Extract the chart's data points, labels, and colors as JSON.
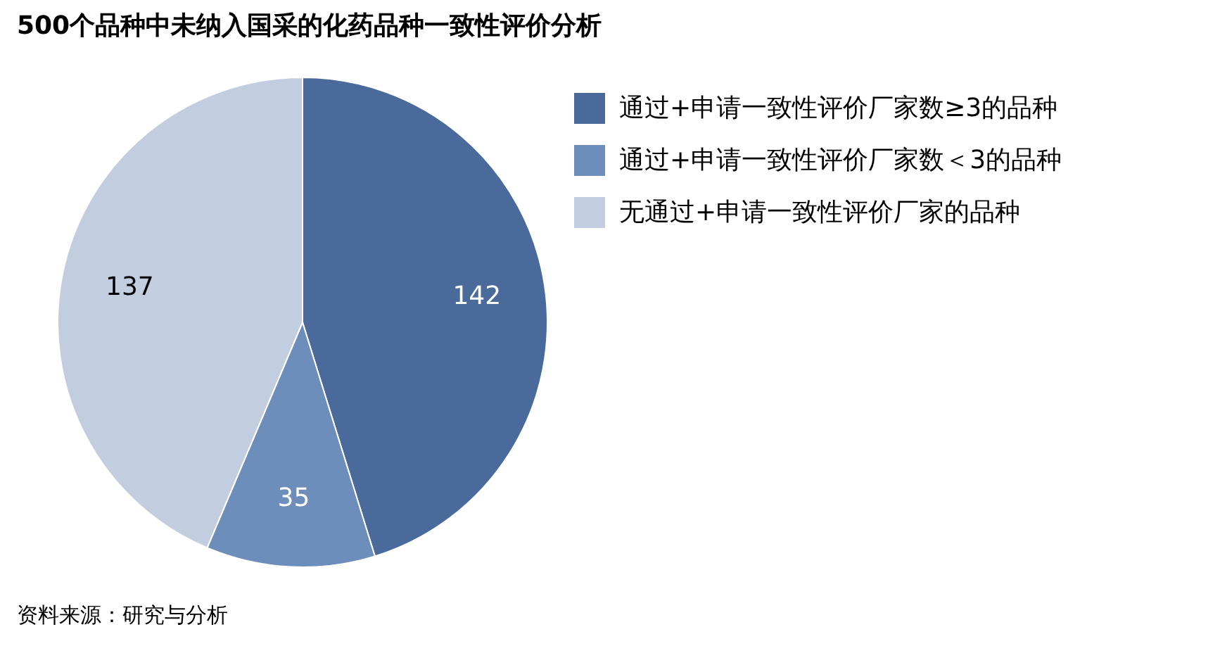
{
  "chart_data": {
    "type": "pie",
    "title": "500个品种中未纳入国采的化药品种一致性评价分析",
    "categories": [
      "通过+申请一致性评价厂家数≥3的品种",
      "通过+申请一致性评价厂家数＜3的品种",
      "无通过+申请一致性评价厂家的品种"
    ],
    "values": [
      142,
      35,
      137
    ],
    "colors": [
      "#4a6a9b",
      "#6d8dbb",
      "#c3cde0"
    ],
    "data_labels": true,
    "legend": "right",
    "annotations": [
      "资料来源：研究与分析"
    ]
  }
}
